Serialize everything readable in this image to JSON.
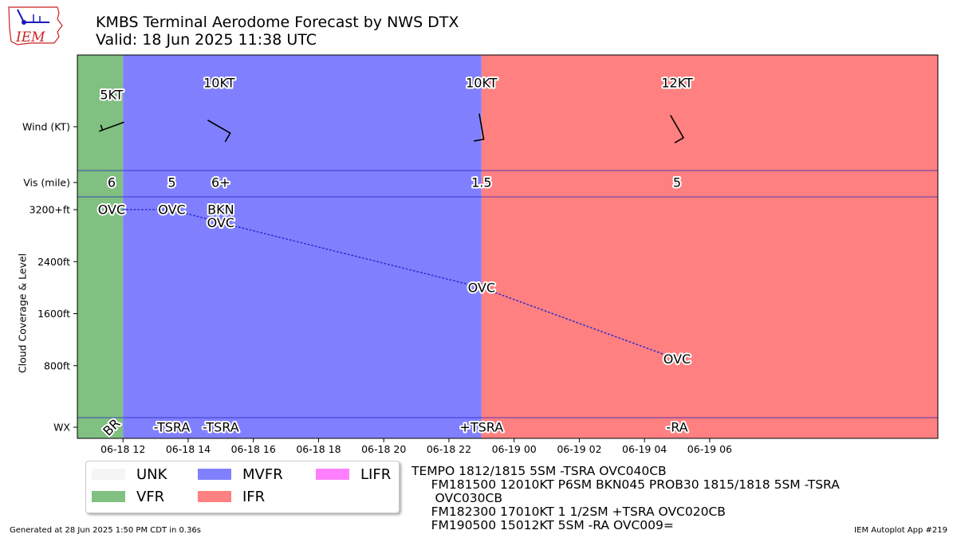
{
  "title": {
    "line1": "KMBS Terminal Aerodome Forecast by NWS DTX",
    "line2": "Valid: 18 Jun 2025 11:38 UTC"
  },
  "logo": {
    "text": "IEM",
    "icon": "iowa-state-outline-icon"
  },
  "colors": {
    "UNK": "#f5f5f5",
    "VFR": "#80c080",
    "MVFR": "#8080ff",
    "IFR": "#ff8080",
    "LIFR": "#ff80ff",
    "divider": "#2020c0",
    "cloud_line": "#2a2ad0"
  },
  "legend": {
    "items": [
      {
        "label": "UNK",
        "color": "#f5f5f5"
      },
      {
        "label": "VFR",
        "color": "#80c080"
      },
      {
        "label": "MVFR",
        "color": "#8080ff"
      },
      {
        "label": "IFR",
        "color": "#ff8080"
      },
      {
        "label": "LIFR",
        "color": "#ff80ff"
      }
    ]
  },
  "taf_text": [
    "TEMPO 1812/1815 5SM -TSRA OVC040CB",
    "     FM181500 12010KT P6SM BKN045 PROB30 1815/1818 5SM -TSRA",
    "      OVC030CB",
    "     FM182300 17010KT 1 1/2SM +TSRA OVC020CB",
    "     FM190500 15012KT 5SM -RA OVC009="
  ],
  "footer": {
    "left": "Generated at 28 Jun 2025 1:50 PM CDT in 0.36s",
    "right": "IEM Autoplot App #219"
  },
  "chart_data": {
    "type": "timeline",
    "xlim_hours": [
      -1.4,
      25.0
    ],
    "x_origin": "06-18 12",
    "x_ticks": [
      {
        "hour": 0,
        "label": "06-18 12"
      },
      {
        "hour": 2,
        "label": "06-18 14"
      },
      {
        "hour": 4,
        "label": "06-18 16"
      },
      {
        "hour": 6,
        "label": "06-18 18"
      },
      {
        "hour": 8,
        "label": "06-18 20"
      },
      {
        "hour": 10,
        "label": "06-18 22"
      },
      {
        "hour": 12,
        "label": "06-19 00"
      },
      {
        "hour": 14,
        "label": "06-19 02"
      },
      {
        "hour": 16,
        "label": "06-19 04"
      },
      {
        "hour": 18,
        "label": "06-19 06"
      }
    ],
    "ylabel": "Cloud Coverage & Level",
    "y_ticks": [
      {
        "value": 800,
        "label": "800ft"
      },
      {
        "value": 1600,
        "label": "1600ft"
      },
      {
        "value": 2400,
        "label": "2400ft"
      },
      {
        "value": 3200,
        "label": "3200+ft"
      }
    ],
    "row_labels": {
      "wind": "Wind (KT)",
      "vis": "Vis (mile)",
      "wx": "WX"
    },
    "categories": [
      {
        "start": -1.4,
        "end": 0.0,
        "cat": "VFR"
      },
      {
        "start": 0.0,
        "end": 11.0,
        "cat": "MVFR"
      },
      {
        "start": 11.0,
        "end": 25.0,
        "cat": "IFR"
      }
    ],
    "wind": [
      {
        "hour": -0.35,
        "label": "5KT",
        "dir": 250,
        "speed": 5
      },
      {
        "hour": 2.95,
        "label": "10KT",
        "dir": 120,
        "speed": 10
      },
      {
        "hour": 11.0,
        "label": "10KT",
        "dir": 170,
        "speed": 10
      },
      {
        "hour": 17.0,
        "label": "12KT",
        "dir": 150,
        "speed": 12
      }
    ],
    "visibility": [
      {
        "hour": -0.35,
        "label": "6"
      },
      {
        "hour": 1.5,
        "label": "5"
      },
      {
        "hour": 3.0,
        "label": "6+"
      },
      {
        "hour": 11.0,
        "label": "1.5"
      },
      {
        "hour": 17.0,
        "label": "5"
      }
    ],
    "clouds": [
      {
        "hour": -0.35,
        "level": 3200,
        "label": "OVC"
      },
      {
        "hour": 1.5,
        "level": 3200,
        "label": "OVC"
      },
      {
        "hour": 3.0,
        "level": 3200,
        "label": "BKN"
      },
      {
        "hour": 3.0,
        "level": 3000,
        "label": "OVC"
      },
      {
        "hour": 11.0,
        "level": 2000,
        "label": "OVC"
      },
      {
        "hour": 17.0,
        "level": 900,
        "label": "OVC"
      }
    ],
    "cloud_line": [
      {
        "hour": 0.0,
        "level": 3200
      },
      {
        "hour": 1.5,
        "level": 3200
      },
      {
        "hour": 3.0,
        "level": 3000
      },
      {
        "hour": 11.0,
        "level": 2000
      },
      {
        "hour": 17.0,
        "level": 900
      }
    ],
    "weather": [
      {
        "hour": -0.35,
        "label": "BR",
        "rotated": true
      },
      {
        "hour": 1.5,
        "label": "-TSRA"
      },
      {
        "hour": 3.0,
        "label": "-TSRA"
      },
      {
        "hour": 11.0,
        "label": "+TSRA"
      },
      {
        "hour": 17.0,
        "label": "-RA"
      }
    ]
  }
}
